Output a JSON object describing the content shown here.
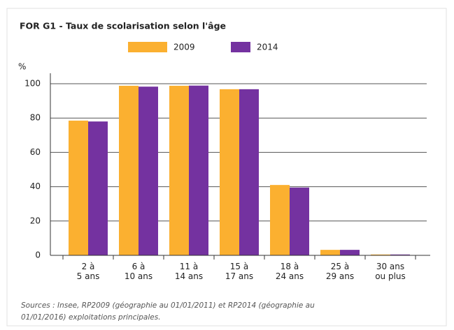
{
  "chart_data": {
    "type": "bar",
    "title": "FOR G1 - Taux de scolarisation selon l'âge",
    "y_label": "%",
    "categories": [
      "2 à 5 ans",
      "6 à 10 ans",
      "11 à 14 ans",
      "15 à 17 ans",
      "18 à 24 ans",
      "25 à 29 ans",
      "30 ans ou plus"
    ],
    "series": [
      {
        "name": "2009",
        "color": "#fbb030",
        "values": [
          78.5,
          98.8,
          98.8,
          96.8,
          41,
          3.2,
          0.5
        ]
      },
      {
        "name": "2014",
        "color": "#7432a0",
        "values": [
          78,
          98.3,
          98.9,
          96.8,
          39.5,
          3.2,
          0.5
        ]
      }
    ],
    "ylim": [
      0,
      100
    ],
    "yticks": [
      0,
      20,
      40,
      60,
      80,
      100
    ],
    "grid": true,
    "source": [
      "Sources : Insee, RP2009 (géographie au 01/01/2011) et RP2014 (géographie au",
      "01/01/2016) exploitations principales."
    ]
  }
}
